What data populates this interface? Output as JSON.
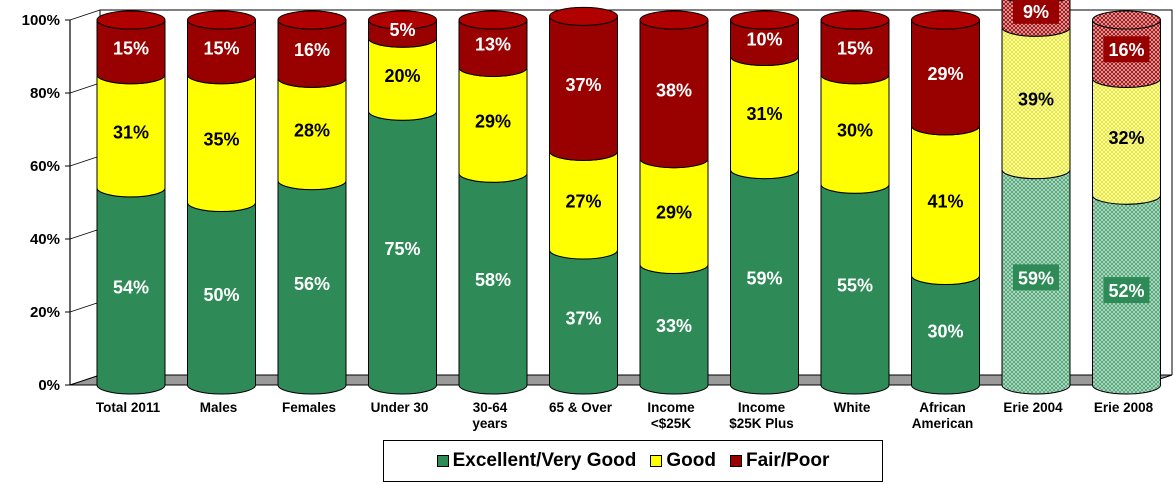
{
  "chart_data": {
    "type": "stacked-bar",
    "categories": [
      "Total 2011",
      "Males",
      "Females",
      "Under 30",
      "30-64 years",
      "65 & Over",
      "Income <$25K",
      "Income $25K Plus",
      "White",
      "African American",
      "Erie 2004",
      "Erie 2008"
    ],
    "category_lines": [
      [
        "Total 2011"
      ],
      [
        "Males"
      ],
      [
        "Females"
      ],
      [
        "Under 30"
      ],
      [
        "30-64",
        "years"
      ],
      [
        "65 & Over"
      ],
      [
        "Income",
        "<$25K"
      ],
      [
        "Income",
        "$25K Plus"
      ],
      [
        "White"
      ],
      [
        "African",
        "American"
      ],
      [
        "Erie 2004"
      ],
      [
        "Erie 2008"
      ]
    ],
    "series": [
      {
        "name": "Excellent/Very Good",
        "color": "#2e8b57",
        "values": [
          54,
          50,
          56,
          75,
          58,
          37,
          33,
          59,
          55,
          30,
          59,
          52
        ]
      },
      {
        "name": "Good",
        "color": "#ffff00",
        "values": [
          31,
          35,
          28,
          20,
          29,
          27,
          29,
          31,
          30,
          41,
          39,
          32
        ]
      },
      {
        "name": "Fair/Poor",
        "color": "#990000",
        "values": [
          15,
          15,
          16,
          5,
          13,
          37,
          38,
          10,
          15,
          29,
          9,
          16
        ]
      }
    ],
    "hatched_categories": [
      "Erie 2004",
      "Erie 2008"
    ],
    "value_suffix": "%",
    "y_ticks": [
      "0%",
      "20%",
      "40%",
      "60%",
      "80%",
      "100%"
    ],
    "ylim": [
      0,
      100
    ],
    "legend_position": "bottom"
  }
}
